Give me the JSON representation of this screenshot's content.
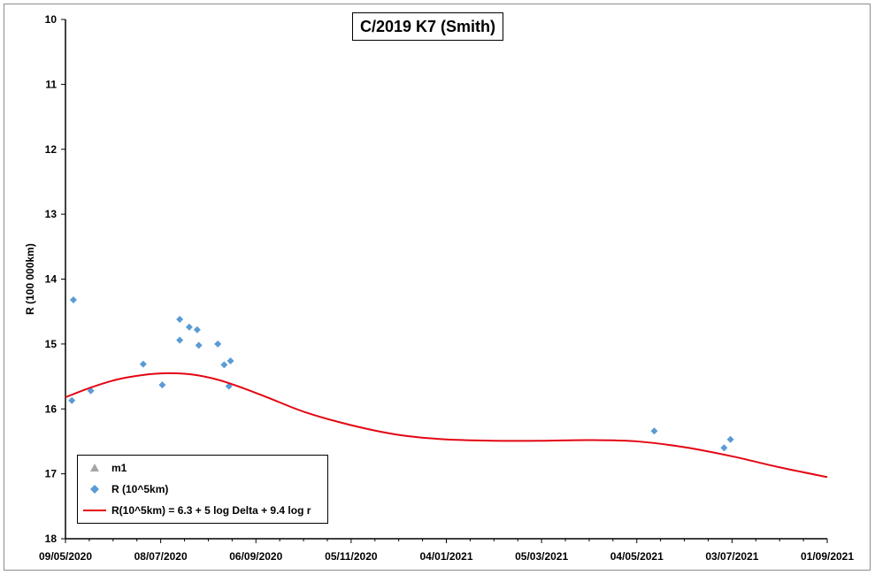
{
  "chart_data": {
    "type": "scatter",
    "title": "C/2019 K7 (Smith)",
    "xlabel": "",
    "ylabel": "R (100 000km)",
    "y_inverted": true,
    "ylim": [
      10,
      18
    ],
    "yticks": [
      "10",
      "11",
      "12",
      "13",
      "14",
      "15",
      "16",
      "17",
      "18"
    ],
    "xlim": [
      "2020-05-09",
      "2021-09-01"
    ],
    "xticks": [
      "09/05/2020",
      "08/07/2020",
      "06/09/2020",
      "05/11/2020",
      "04/01/2021",
      "05/03/2021",
      "04/05/2021",
      "03/07/2021",
      "01/09/2021"
    ],
    "grid": false,
    "legend_position": "bottom-left",
    "series": [
      {
        "name": "m1",
        "kind": "marker",
        "marker": "triangle",
        "color": "#a5a5a5",
        "points": []
      },
      {
        "name": "R (10^5km)",
        "kind": "marker",
        "marker": "diamond",
        "color": "#5b9bd5",
        "points": [
          {
            "x": "2020-05-13",
            "y": 15.87
          },
          {
            "x": "2020-05-14",
            "y": 14.32
          },
          {
            "x": "2020-05-25",
            "y": 15.72
          },
          {
            "x": "2020-06-27",
            "y": 15.31
          },
          {
            "x": "2020-07-09",
            "y": 15.63
          },
          {
            "x": "2020-07-20",
            "y": 14.94
          },
          {
            "x": "2020-07-20",
            "y": 14.62
          },
          {
            "x": "2020-07-26",
            "y": 14.74
          },
          {
            "x": "2020-07-31",
            "y": 14.78
          },
          {
            "x": "2020-08-01",
            "y": 15.02
          },
          {
            "x": "2020-08-13",
            "y": 15.0
          },
          {
            "x": "2020-08-17",
            "y": 15.32
          },
          {
            "x": "2020-08-20",
            "y": 15.65
          },
          {
            "x": "2020-08-21",
            "y": 15.26
          },
          {
            "x": "2021-05-15",
            "y": 16.34
          },
          {
            "x": "2021-06-28",
            "y": 16.6
          },
          {
            "x": "2021-07-02",
            "y": 16.47
          }
        ]
      },
      {
        "name": "R(10^5km) = 6.3 + 5 log Delta + 9.4 log r",
        "kind": "line",
        "color": "#e30613",
        "points": [
          {
            "x": "2020-05-09",
            "y": 15.82
          },
          {
            "x": "2020-05-25",
            "y": 15.67
          },
          {
            "x": "2020-06-10",
            "y": 15.55
          },
          {
            "x": "2020-06-26",
            "y": 15.48
          },
          {
            "x": "2020-07-12",
            "y": 15.45
          },
          {
            "x": "2020-07-28",
            "y": 15.47
          },
          {
            "x": "2020-08-13",
            "y": 15.55
          },
          {
            "x": "2020-08-29",
            "y": 15.68
          },
          {
            "x": "2020-09-14",
            "y": 15.83
          },
          {
            "x": "2020-10-07",
            "y": 16.05
          },
          {
            "x": "2020-11-05",
            "y": 16.25
          },
          {
            "x": "2020-12-05",
            "y": 16.4
          },
          {
            "x": "2021-01-04",
            "y": 16.47
          },
          {
            "x": "2021-02-03",
            "y": 16.49
          },
          {
            "x": "2021-03-05",
            "y": 16.49
          },
          {
            "x": "2021-04-04",
            "y": 16.48
          },
          {
            "x": "2021-05-04",
            "y": 16.5
          },
          {
            "x": "2021-06-03",
            "y": 16.59
          },
          {
            "x": "2021-07-03",
            "y": 16.73
          },
          {
            "x": "2021-08-02",
            "y": 16.9
          },
          {
            "x": "2021-09-01",
            "y": 17.05
          }
        ]
      }
    ]
  }
}
